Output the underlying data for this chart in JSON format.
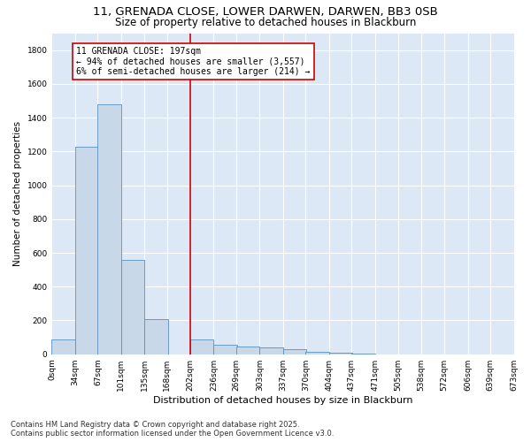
{
  "title_line1": "11, GRENADA CLOSE, LOWER DARWEN, DARWEN, BB3 0SB",
  "title_line2": "Size of property relative to detached houses in Blackburn",
  "xlabel": "Distribution of detached houses by size in Blackburn",
  "ylabel": "Number of detached properties",
  "bar_color": "#c8d8e8",
  "bar_edge_color": "#5a8fc0",
  "vline_x": 202,
  "vline_color": "#cc0000",
  "annotation_text": "11 GRENADA CLOSE: 197sqm\n← 94% of detached houses are smaller (3,557)\n6% of semi-detached houses are larger (214) →",
  "annotation_box_color": "#cc0000",
  "bins": [
    0,
    34,
    67,
    101,
    135,
    168,
    202,
    236,
    269,
    303,
    337,
    370,
    404,
    437,
    471,
    505,
    538,
    572,
    606,
    639,
    673
  ],
  "bin_labels": [
    "0sqm",
    "34sqm",
    "67sqm",
    "101sqm",
    "135sqm",
    "168sqm",
    "202sqm",
    "236sqm",
    "269sqm",
    "303sqm",
    "337sqm",
    "370sqm",
    "404sqm",
    "437sqm",
    "471sqm",
    "505sqm",
    "538sqm",
    "572sqm",
    "606sqm",
    "639sqm",
    "673sqm"
  ],
  "bar_heights": [
    90,
    1230,
    1480,
    560,
    210,
    0,
    85,
    55,
    45,
    40,
    30,
    15,
    8,
    3,
    1,
    0,
    0,
    0,
    0,
    0
  ],
  "ylim": [
    0,
    1900
  ],
  "yticks": [
    0,
    200,
    400,
    600,
    800,
    1000,
    1200,
    1400,
    1600,
    1800
  ],
  "plot_bg_color": "#dce8f5",
  "footer_line1": "Contains HM Land Registry data © Crown copyright and database right 2025.",
  "footer_line2": "Contains public sector information licensed under the Open Government Licence v3.0.",
  "title_fontsize": 9.5,
  "subtitle_fontsize": 8.5,
  "tick_fontsize": 6.5,
  "xlabel_fontsize": 8,
  "ylabel_fontsize": 7.5,
  "footer_fontsize": 6,
  "annot_fontsize": 7
}
